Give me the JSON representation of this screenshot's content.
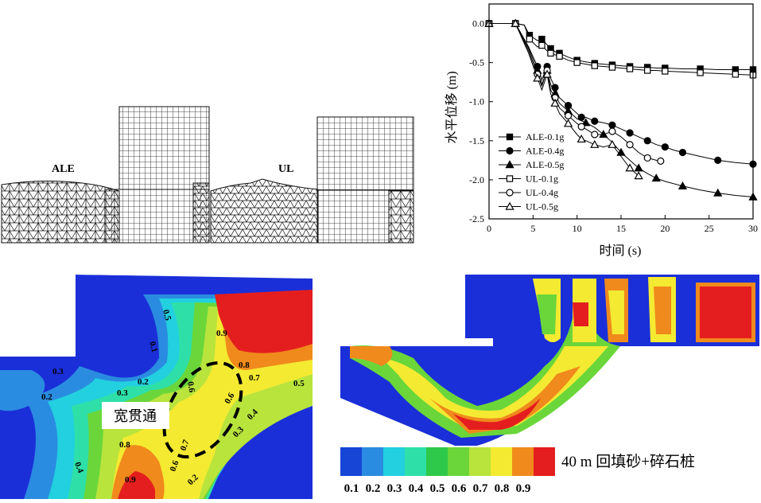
{
  "mesh_panel": {
    "left_label": "ALE",
    "right_label": "UL"
  },
  "chart_data": {
    "type": "line",
    "title": "",
    "xlabel": "时间 (s)",
    "ylabel": "水平位移 (m)",
    "xlim": [
      0,
      30
    ],
    "ylim": [
      -2.5,
      0.25
    ],
    "xticks": [
      "0",
      "5",
      "10",
      "15",
      "20",
      "25",
      "30"
    ],
    "yticks": [
      "0.0",
      "-0.5",
      "-1.0",
      "-1.5",
      "-2.0",
      "-2.5"
    ],
    "legend_position": "bottom-left",
    "series": [
      {
        "name": "ALE-0.1g",
        "marker": "square-filled",
        "x": [
          0,
          1.5,
          3,
          4,
          4.6,
          5.5,
          6,
          6.5,
          7,
          7.5,
          8,
          9,
          10,
          11,
          12,
          13,
          14,
          15,
          16,
          17,
          18,
          19,
          20,
          22,
          24,
          26,
          28,
          30
        ],
        "y": [
          0,
          0,
          0,
          -0.02,
          -0.15,
          -0.22,
          -0.2,
          -0.26,
          -0.32,
          -0.36,
          -0.38,
          -0.43,
          -0.47,
          -0.49,
          -0.51,
          -0.52,
          -0.53,
          -0.54,
          -0.55,
          -0.56,
          -0.56,
          -0.57,
          -0.57,
          -0.58,
          -0.58,
          -0.59,
          -0.59,
          -0.59
        ]
      },
      {
        "name": "ALE-0.4g",
        "marker": "circle-filled",
        "x": [
          0,
          1.5,
          3,
          4.5,
          5.5,
          6,
          6.6,
          7,
          7.5,
          8,
          9,
          10,
          10.5,
          11,
          12,
          13,
          14,
          15,
          16,
          17,
          18,
          19,
          20,
          21,
          22,
          24,
          26,
          28,
          30
        ],
        "y": [
          0,
          0,
          0,
          -0.3,
          -0.55,
          -0.72,
          -0.55,
          -0.7,
          -0.82,
          -0.95,
          -1.05,
          -1.15,
          -1.2,
          -1.2,
          -1.25,
          -1.27,
          -1.3,
          -1.35,
          -1.4,
          -1.45,
          -1.5,
          -1.55,
          -1.58,
          -1.62,
          -1.65,
          -1.7,
          -1.75,
          -1.78,
          -1.8
        ]
      },
      {
        "name": "ALE-0.5g",
        "marker": "triangle-filled",
        "x": [
          0,
          1.5,
          3,
          4.5,
          5.5,
          6,
          6.6,
          7,
          7.5,
          8,
          9,
          10,
          11,
          12,
          13,
          14,
          15,
          16,
          17,
          18,
          19,
          20,
          22,
          24,
          26,
          28,
          30
        ],
        "y": [
          0,
          0,
          0,
          -0.32,
          -0.6,
          -0.78,
          -0.6,
          -0.78,
          -0.9,
          -1.02,
          -1.12,
          -1.22,
          -1.27,
          -1.33,
          -1.42,
          -1.52,
          -1.65,
          -1.75,
          -1.85,
          -1.92,
          -1.98,
          -2.02,
          -2.08,
          -2.13,
          -2.17,
          -2.2,
          -2.22
        ]
      },
      {
        "name": "UL-0.1g",
        "marker": "square-open",
        "x": [
          0,
          1.5,
          3,
          4,
          4.6,
          5.5,
          6,
          6.5,
          7,
          7.5,
          8,
          9,
          10,
          11,
          12,
          13,
          14,
          15,
          16,
          17,
          18,
          19,
          20,
          22,
          24,
          26,
          28,
          30
        ],
        "y": [
          0,
          0,
          0,
          -0.02,
          -0.2,
          -0.3,
          -0.28,
          -0.34,
          -0.38,
          -0.4,
          -0.42,
          -0.47,
          -0.5,
          -0.52,
          -0.54,
          -0.55,
          -0.56,
          -0.57,
          -0.58,
          -0.59,
          -0.6,
          -0.6,
          -0.61,
          -0.62,
          -0.63,
          -0.64,
          -0.65,
          -0.66
        ]
      },
      {
        "name": "UL-0.4g",
        "marker": "circle-open",
        "x": [
          0,
          1.5,
          3,
          4.5,
          5.5,
          6,
          6.6,
          7,
          7.5,
          8,
          9,
          10,
          10.5,
          11,
          12,
          13,
          14,
          15,
          16,
          17,
          18,
          19,
          19.5
        ],
        "y": [
          0,
          0,
          0,
          -0.35,
          -0.65,
          -0.8,
          -0.6,
          -0.85,
          -0.95,
          -1.08,
          -1.18,
          -1.28,
          -1.32,
          -1.35,
          -1.42,
          -1.42,
          -1.38,
          -1.45,
          -1.55,
          -1.65,
          -1.72,
          -1.75,
          -1.76
        ]
      },
      {
        "name": "UL-0.5g",
        "marker": "triangle-open",
        "x": [
          0,
          1.5,
          3,
          4.5,
          5.5,
          6,
          6.6,
          7,
          7.5,
          8,
          9,
          10,
          10.5,
          11,
          12,
          13,
          14,
          15,
          16,
          17
        ],
        "y": [
          0,
          0,
          0,
          -0.38,
          -0.7,
          -0.85,
          -0.65,
          -0.9,
          -1.02,
          -1.15,
          -1.28,
          -1.42,
          -1.48,
          -1.5,
          -1.55,
          -1.58,
          -1.55,
          -1.7,
          -1.85,
          -1.95
        ]
      }
    ]
  },
  "contour_panel": {
    "annotation": "宽贯通",
    "contour_labels": [
      "0.5",
      "0.1",
      "0.9",
      "0.8",
      "0.7",
      "0.6",
      "0.3",
      "0.2",
      "0.3",
      "0.2",
      "0.5",
      "0.6",
      "0.4",
      "0.3",
      "0.8",
      "0.7",
      "0.4",
      "0.9",
      "0.6",
      "0.2"
    ]
  },
  "field_panel": {
    "caption": "40 m 回填砂+碎石桩",
    "colorbar_colors": [
      "#1745d6",
      "#2a8ce0",
      "#22d0e0",
      "#2ee0a8",
      "#2ec84a",
      "#6ad63a",
      "#b8e43c",
      "#f4ea32",
      "#f08a1c",
      "#e41e1e"
    ],
    "colorbar_labels": [
      "0.1",
      "0.2",
      "0.3",
      "0.4",
      "0.5",
      "0.6",
      "0.7",
      "0.8",
      "0.9"
    ]
  }
}
